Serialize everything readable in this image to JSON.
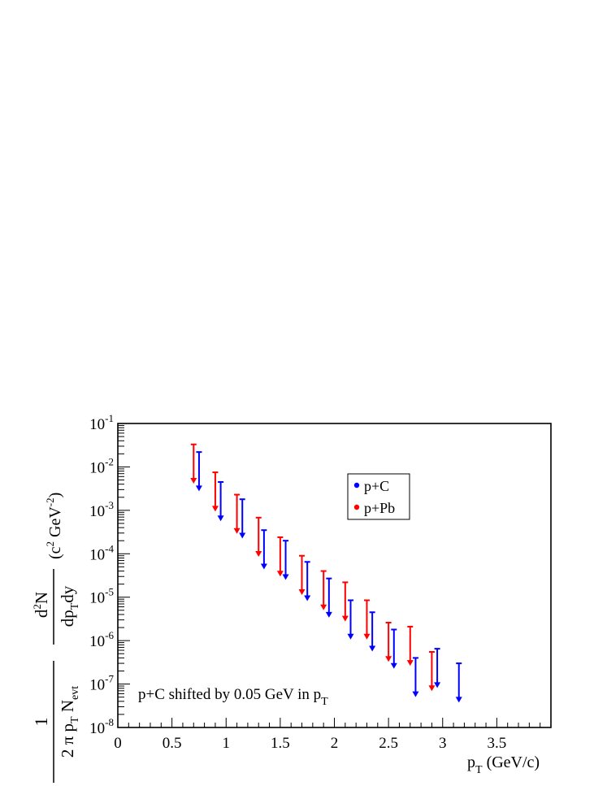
{
  "chart_data": {
    "type": "scatter",
    "subtype": "upper-limit arrows",
    "x_axis": {
      "label_main": "p",
      "label_sub": "T",
      "label_rest": " (GeV/c)",
      "range": [
        0,
        4
      ],
      "ticks": [
        0,
        0.5,
        1,
        1.5,
        2,
        2.5,
        3,
        3.5
      ],
      "tick_labels": [
        "0",
        "0.5",
        "1",
        "1.5",
        "2",
        "2.5",
        "3",
        "3.5"
      ]
    },
    "y_axis": {
      "scale": "log",
      "range": [
        1e-08,
        0.1
      ],
      "tick_exponents": [
        -1,
        -2,
        -3,
        -4,
        -5,
        -6,
        -7,
        -8
      ],
      "tick_base": "10",
      "label": {
        "frac1_num": "1",
        "den_a": "2 π p",
        "den_a_sub": "T",
        "den_b": " N",
        "den_b_sub": "evt",
        "num2_a": "d",
        "num2_sup": "2",
        "num2_b": "N",
        "frac2_den_a": "dp",
        "frac2_den_sub": "T",
        "frac2_den_b": "dy",
        "units_a": "(c",
        "units_sup1": "2",
        "units_b": " GeV",
        "units_sup2": "-2",
        "units_c": ")"
      }
    },
    "series": [
      {
        "name": "p+C",
        "color": "#0000ff",
        "x": [
          0.75,
          0.95,
          1.15,
          1.35,
          1.55,
          1.75,
          1.95,
          2.15,
          2.35,
          2.55,
          2.75,
          2.95,
          3.15
        ],
        "y_upper": [
          0.022,
          0.0045,
          0.0018,
          0.00035,
          0.0002,
          6.5e-05,
          2.7e-05,
          8.5e-06,
          4.5e-06,
          1.8e-06,
          4e-07,
          6.5e-07,
          3e-07
        ]
      },
      {
        "name": "p+Pb",
        "color": "#ff0000",
        "x": [
          0.7,
          0.9,
          1.1,
          1.3,
          1.5,
          1.7,
          1.9,
          2.1,
          2.3,
          2.5,
          2.7,
          2.9
        ],
        "y_upper": [
          0.033,
          0.0075,
          0.0023,
          0.00068,
          0.00024,
          9e-05,
          4e-05,
          2.2e-05,
          8.5e-06,
          2.6e-06,
          2.1e-06,
          5.5e-07
        ]
      }
    ],
    "legend": {
      "position": "upper-right",
      "entries": [
        "p+C",
        "p+Pb"
      ]
    },
    "annotation": {
      "text": "p+C shifted by 0.05 GeV in p",
      "sub": "T"
    }
  }
}
